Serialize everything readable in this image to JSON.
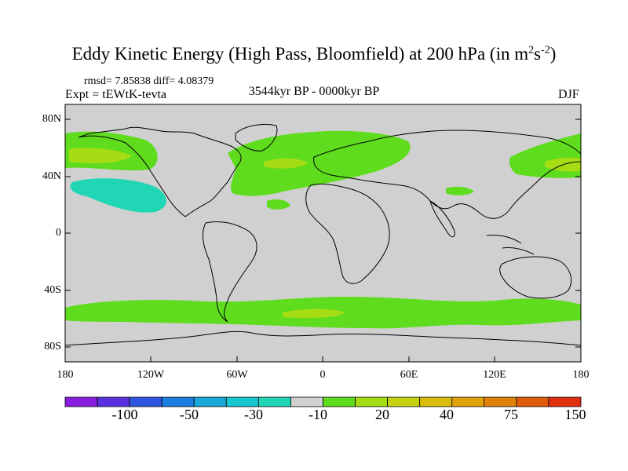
{
  "title": {
    "main": "Eddy Kinetic Energy (High Pass, Bloomfield) at 200 hPa (in m",
    "sup1": "2",
    "mid": "s",
    "sup2": "-2",
    "end": ")"
  },
  "stats": "rmsd= 7.85838 diff= 4.08379",
  "experiment": "Expt = tEWtK-tevta",
  "period": "3544kyr BP - 0000kyr BP",
  "season": "DJF",
  "lat_labels": [
    "80N",
    "40N",
    "0",
    "40S",
    "80S"
  ],
  "lon_labels": [
    "180",
    "120W",
    "60W",
    "0",
    "60E",
    "120E",
    "180"
  ],
  "colorbar": {
    "labels": [
      "-100",
      "-50",
      "-30",
      "-10",
      "20",
      "40",
      "75",
      "150"
    ],
    "colors": [
      "#8a1ee0",
      "#5a2fe0",
      "#2f55e0",
      "#1c7fdf",
      "#19a8d8",
      "#17c7cf",
      "#20d6b4",
      "#d0d0d0",
      "#5fdc1e",
      "#a5dc14",
      "#c6d20f",
      "#d8be0a",
      "#e0a208",
      "#e0820a",
      "#e05a0c",
      "#e03010"
    ]
  },
  "map_colors": {
    "ocean": "#d0d0d0",
    "positive_low": "#5fdc1e",
    "positive_mid": "#a5dc14",
    "negative": "#20d6b4",
    "coast": "#000000"
  }
}
